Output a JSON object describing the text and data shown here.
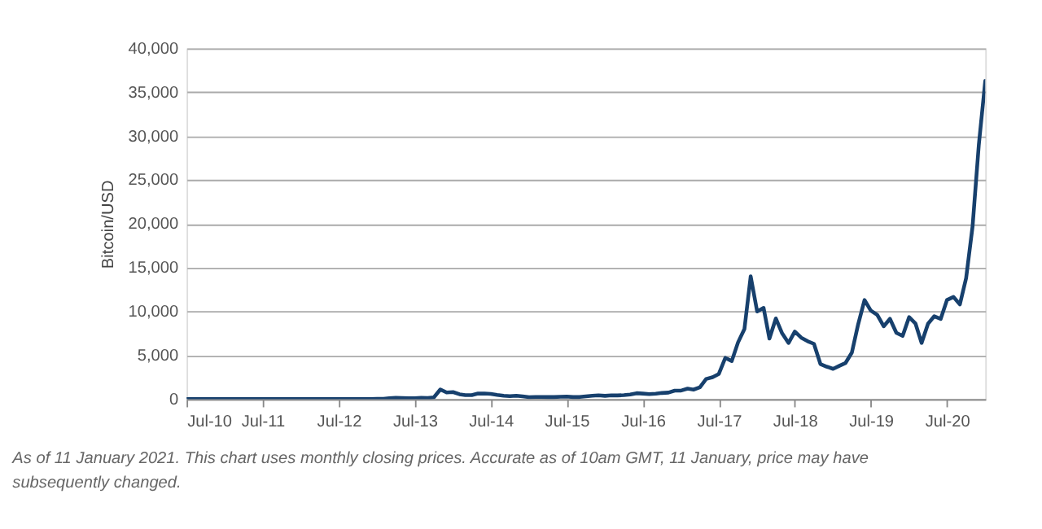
{
  "chart_data": {
    "type": "line",
    "ylabel": "Bitcoin/USD",
    "x": [
      "2010-07",
      "2010-08",
      "2010-09",
      "2010-10",
      "2010-11",
      "2010-12",
      "2011-01",
      "2011-02",
      "2011-03",
      "2011-04",
      "2011-05",
      "2011-06",
      "2011-07",
      "2011-08",
      "2011-09",
      "2011-10",
      "2011-11",
      "2011-12",
      "2012-01",
      "2012-02",
      "2012-03",
      "2012-04",
      "2012-05",
      "2012-06",
      "2012-07",
      "2012-08",
      "2012-09",
      "2012-10",
      "2012-11",
      "2012-12",
      "2013-01",
      "2013-02",
      "2013-03",
      "2013-04",
      "2013-05",
      "2013-06",
      "2013-07",
      "2013-08",
      "2013-09",
      "2013-10",
      "2013-11",
      "2013-12",
      "2014-01",
      "2014-02",
      "2014-03",
      "2014-04",
      "2014-05",
      "2014-06",
      "2014-07",
      "2014-08",
      "2014-09",
      "2014-10",
      "2014-11",
      "2014-12",
      "2015-01",
      "2015-02",
      "2015-03",
      "2015-04",
      "2015-05",
      "2015-06",
      "2015-07",
      "2015-08",
      "2015-09",
      "2015-10",
      "2015-11",
      "2015-12",
      "2016-01",
      "2016-02",
      "2016-03",
      "2016-04",
      "2016-05",
      "2016-06",
      "2016-07",
      "2016-08",
      "2016-09",
      "2016-10",
      "2016-11",
      "2016-12",
      "2017-01",
      "2017-02",
      "2017-03",
      "2017-04",
      "2017-05",
      "2017-06",
      "2017-07",
      "2017-08",
      "2017-09",
      "2017-10",
      "2017-11",
      "2017-12",
      "2018-01",
      "2018-02",
      "2018-03",
      "2018-04",
      "2018-05",
      "2018-06",
      "2018-07",
      "2018-08",
      "2018-09",
      "2018-10",
      "2018-11",
      "2018-12",
      "2019-01",
      "2019-02",
      "2019-03",
      "2019-04",
      "2019-05",
      "2019-06",
      "2019-07",
      "2019-08",
      "2019-09",
      "2019-10",
      "2019-11",
      "2019-12",
      "2020-01",
      "2020-02",
      "2020-03",
      "2020-04",
      "2020-05",
      "2020-06",
      "2020-07",
      "2020-08",
      "2020-09",
      "2020-10",
      "2020-11",
      "2020-12",
      "2021-01"
    ],
    "series": [
      {
        "color": "#17406d",
        "values": [
          0,
          0,
          0,
          0,
          0,
          0,
          1,
          1,
          1,
          3,
          9,
          16,
          13,
          8,
          5,
          3,
          3,
          5,
          6,
          5,
          5,
          5,
          5,
          7,
          9,
          10,
          12,
          11,
          13,
          14,
          20,
          33,
          93,
          139,
          129,
          97,
          106,
          141,
          133,
          198,
          1100,
          750,
          800,
          550,
          450,
          450,
          630,
          640,
          590,
          480,
          390,
          340,
          380,
          320,
          220,
          250,
          245,
          235,
          230,
          265,
          285,
          230,
          236,
          312,
          378,
          430,
          370,
          435,
          415,
          450,
          530,
          670,
          625,
          575,
          610,
          700,
          745,
          960,
          970,
          1190,
          1080,
          1350,
          2300,
          2500,
          2870,
          4700,
          4340,
          6450,
          8000,
          14000,
          10000,
          10400,
          6900,
          9200,
          7500,
          6400,
          7700,
          7000,
          6600,
          6300,
          4000,
          3700,
          3450,
          3800,
          4100,
          5300,
          8500,
          11300,
          10100,
          9600,
          8300,
          9150,
          7550,
          7200,
          9350,
          8600,
          6400,
          8600,
          9450,
          9150,
          11300,
          11650,
          10800,
          13800,
          19700,
          29000,
          36300
        ]
      }
    ],
    "xlim": [
      "2010-07",
      "2021-01"
    ],
    "xticks": [
      {
        "value": "2010-07",
        "label": "Jul-10"
      },
      {
        "value": "2011-07",
        "label": "Jul-11"
      },
      {
        "value": "2012-07",
        "label": "Jul-12"
      },
      {
        "value": "2013-07",
        "label": "Jul-13"
      },
      {
        "value": "2014-07",
        "label": "Jul-14"
      },
      {
        "value": "2015-07",
        "label": "Jul-15"
      },
      {
        "value": "2016-07",
        "label": "Jul-16"
      },
      {
        "value": "2017-07",
        "label": "Jul-17"
      },
      {
        "value": "2018-07",
        "label": "Jul-18"
      },
      {
        "value": "2019-07",
        "label": "Jul-19"
      },
      {
        "value": "2020-07",
        "label": "Jul-20"
      }
    ],
    "ylim": [
      0,
      40000
    ],
    "yticks": [
      0,
      {
        "value": 5000,
        "label": "5,000"
      },
      {
        "value": 10000,
        "label": "10,000"
      },
      {
        "value": 15000,
        "label": "15,000"
      },
      {
        "value": 20000,
        "label": "20,000"
      },
      {
        "value": 25000,
        "label": "25,000"
      },
      {
        "value": 30000,
        "label": "30,000"
      },
      {
        "value": 35000,
        "label": "35,000"
      },
      {
        "value": 40000,
        "label": "40,000"
      }
    ],
    "grid": "y",
    "marker": "none",
    "line_style": "solid",
    "annotations": [
      "As of 11 January 2021. This chart uses monthly closing prices. Accurate as of 10am GMT, 11 January, price may have subsequently changed."
    ]
  }
}
